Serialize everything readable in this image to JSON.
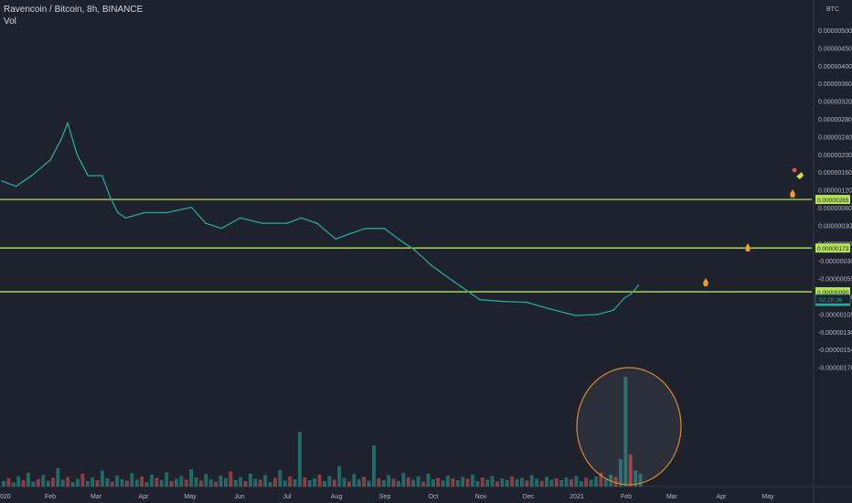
{
  "header": {
    "symbol_line": "Ravencoin / Bitcoin, 8h, BINANCE",
    "volume_label": "Vol"
  },
  "colors": {
    "background": "#1e222d",
    "price_line": "#26a69a",
    "up": "#26a69a",
    "down": "#ef5350",
    "level_line": "#b4e35a",
    "circle": "#e08a2c",
    "rocket": "#f0a030",
    "text": "#b2b5be"
  },
  "chart_data": {
    "type": "line",
    "title": "Ravencoin / Bitcoin, 8h, BINANCE",
    "x_label": "",
    "y_label": "",
    "currency_label": "BTC",
    "x_ticks": [
      "2020",
      "Feb",
      "Mar",
      "Apr",
      "May",
      "Jun",
      "Jul",
      "Aug",
      "Sep",
      "Oct",
      "Nov",
      "Dec",
      "2021",
      "Feb",
      "Mar",
      "Apr",
      "May"
    ],
    "y_ticks": [
      "0.00000500",
      "0.00000450",
      "0.00000400",
      "0.00000360",
      "0.00000320",
      "0.00000280",
      "0.00000240",
      "0.00000200",
      "0.00000160",
      "0.00000120",
      "0.00000060",
      "0.00000030",
      "0.00000000",
      "-0.00000030",
      "-0.00000055",
      "-0.00000080",
      "-0.00000105",
      "-0.00000130",
      "-0.00000154",
      "-0.00000178"
    ],
    "series": [
      {
        "name": "",
        "x": [
          "2020-01-01",
          "2020-01-10",
          "2020-01-20",
          "2020-02-01",
          "2020-02-08",
          "2020-02-12",
          "2020-02-18",
          "2020-02-25",
          "2020-03-05",
          "2020-03-10",
          "2020-03-15",
          "2020-03-20",
          "2020-04-01",
          "2020-04-15",
          "2020-05-01",
          "2020-05-10",
          "2020-05-20",
          "2020-06-01",
          "2020-06-15",
          "2020-07-01",
          "2020-07-10",
          "2020-07-20",
          "2020-08-01",
          "2020-08-10",
          "2020-08-20",
          "2020-09-01",
          "2020-09-10",
          "2020-09-20",
          "2020-10-01",
          "2020-10-15",
          "2020-11-01",
          "2020-11-15",
          "2020-12-01",
          "2020-12-15",
          "2021-01-01",
          "2021-01-15",
          "2021-01-25",
          "2021-02-01",
          "2021-02-05",
          "2021-02-10"
        ],
        "y": [
          3e-06,
          2.9e-06,
          3.1e-06,
          3.4e-06,
          3.8e-06,
          4.1e-06,
          3.5e-06,
          3.1e-06,
          3.1e-06,
          2.7e-06,
          2.4e-06,
          2.3e-06,
          2.4e-06,
          2.4e-06,
          2.5e-06,
          2.2e-06,
          2.1e-06,
          2.3e-06,
          2.2e-06,
          2.2e-06,
          2.3e-06,
          2.2e-06,
          1.9e-06,
          2e-06,
          2.1e-06,
          2.1e-06,
          1.9e-06,
          1.7e-06,
          1.4e-06,
          1.1e-06,
          7.5e-07,
          7.2e-07,
          7e-07,
          5.8e-07,
          4.5e-07,
          4.7e-07,
          5.5e-07,
          7.8e-07,
          8.5e-07,
          1.02e-06
        ]
      }
    ],
    "volume": [
      12,
      18,
      9,
      22,
      14,
      30,
      11,
      16,
      25,
      13,
      19,
      40,
      15,
      21,
      10,
      17,
      28,
      12,
      20,
      14,
      35,
      18,
      11,
      24,
      16,
      13,
      29,
      15,
      22,
      10,
      26,
      19,
      14,
      31,
      12,
      17,
      23,
      15,
      38,
      20,
      13,
      27,
      16,
      11,
      24,
      18,
      33,
      14,
      21,
      12,
      28,
      17,
      15,
      25,
      10,
      19,
      36,
      13,
      22,
      16,
      120,
      20,
      14,
      18,
      26,
      12,
      23,
      15,
      45,
      19,
      11,
      27,
      16,
      21,
      13,
      90,
      18,
      14,
      25,
      17,
      12,
      30,
      20,
      15,
      22,
      11,
      28,
      16,
      19,
      13,
      24,
      18,
      14,
      21,
      17,
      26,
      12,
      20,
      15,
      23,
      11,
      18,
      14,
      22,
      16,
      19,
      13,
      25,
      17,
      12,
      21,
      15,
      18,
      14,
      20,
      16,
      23,
      12,
      19,
      15,
      22,
      30,
      18,
      26,
      21,
      60,
      240,
      70,
      35,
      28
    ],
    "levels": [
      {
        "value": 2.65e-06,
        "label": "0.00000265"
      },
      {
        "value": 1.73e-06,
        "label": "0.00000173"
      },
      {
        "value": 9e-07,
        "label": "0.00000090"
      }
    ],
    "price_tags": [
      {
        "value": 9e-07,
        "label": "0.00000090"
      },
      {
        "value": 9.6e-07,
        "label": "0.00000096"
      }
    ],
    "countdown": "02:20:36",
    "grid": false,
    "legend_position": "top-left"
  }
}
